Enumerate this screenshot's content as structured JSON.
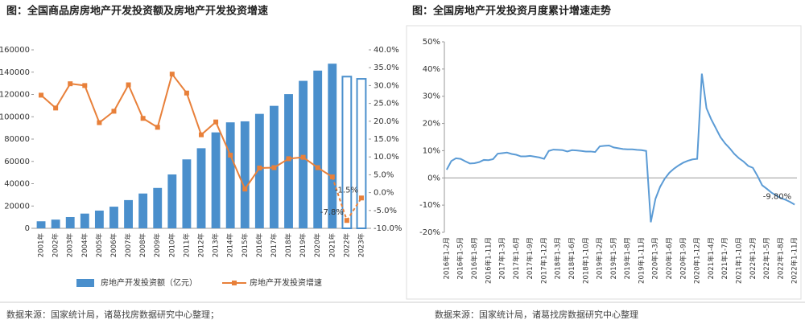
{
  "chart_data": [
    {
      "type": "combo",
      "title": "图：全国商品房房地产开发投资额及房地产开发投资增速",
      "source": "数据来源：国家统计局，诸葛找房数据研究中心整理；",
      "categories": [
        "2001年",
        "2002年",
        "2003年",
        "2004年",
        "2005年",
        "2006年",
        "2007年",
        "2008年",
        "2009年",
        "2010年",
        "2011年",
        "2012年",
        "2013年",
        "2014年",
        "2015年",
        "2016年",
        "2017年",
        "2018年",
        "2019年",
        "2020年",
        "2021年",
        "2022年",
        "2023年"
      ],
      "outline_only_categories": [
        "2022年",
        "2023年"
      ],
      "series": [
        {
          "name": "房地产开发投资额（亿元）",
          "color": "#4a8fcc",
          "kind": "bar",
          "values": [
            6300,
            7800,
            10100,
            13200,
            15900,
            19400,
            25300,
            31200,
            36200,
            48300,
            61800,
            71800,
            86000,
            95000,
            95900,
            102600,
            109800,
            120300,
            132200,
            141400,
            147600,
            136000,
            134000
          ]
        },
        {
          "name": "房地产开发投资增速",
          "color": "#e8803a",
          "kind": "line",
          "axis": "y2",
          "values": [
            27.3,
            23.7,
            30.5,
            30,
            19.6,
            22.8,
            30.2,
            20.8,
            18.3,
            33.2,
            27.9,
            16.2,
            19.8,
            10.5,
            1,
            6.9,
            7,
            9.5,
            9.9,
            7,
            4.4,
            -7.8,
            -1.5
          ],
          "value_labels": [
            null,
            null,
            null,
            null,
            null,
            null,
            null,
            null,
            null,
            null,
            null,
            null,
            null,
            null,
            null,
            null,
            null,
            null,
            null,
            null,
            null,
            "-7.8%",
            "-1.5%"
          ]
        }
      ],
      "ylim": [
        0,
        160000
      ],
      "yticks": [
        0,
        20000,
        40000,
        60000,
        80000,
        100000,
        120000,
        140000,
        160000
      ],
      "y2lim": [
        -10,
        40
      ],
      "y2ticks": [
        {
          "value": -10,
          "label": "-10.0%"
        },
        {
          "value": -5,
          "label": "-5.0%"
        },
        {
          "value": 0,
          "label": "0.0%"
        },
        {
          "value": 5,
          "label": "5.0%"
        },
        {
          "value": 10,
          "label": "10.0%"
        },
        {
          "value": 15,
          "label": "15.0%"
        },
        {
          "value": 20,
          "label": "20.0%"
        },
        {
          "value": 25,
          "label": "25.0%"
        },
        {
          "value": 30,
          "label": "30.0%"
        },
        {
          "value": 35,
          "label": "35.0%"
        },
        {
          "value": 40,
          "label": "40.0%"
        }
      ],
      "legend": "bottom"
    },
    {
      "type": "line",
      "title": "图：全国房地产开发投资月度累计增速走势",
      "source": "数据来源：国家统计局，诸葛找房数据研究中心整理",
      "categories": [
        "2016年1-2月",
        null,
        null,
        "2016年1-5月",
        null,
        null,
        "2016年1-8月",
        null,
        null,
        "2016年1-11月",
        null,
        null,
        "2017年1-3月",
        null,
        null,
        "2017年1-6月",
        null,
        null,
        "2017年1-9月",
        null,
        null,
        "2017年1-12月",
        null,
        null,
        "2018年1-3月",
        null,
        null,
        "2018年1-6月",
        null,
        null,
        "2018年1-10月",
        null,
        null,
        "2019年1-2月",
        null,
        null,
        "2019年1-5月",
        null,
        null,
        "2019年1-8月",
        null,
        null,
        "2019年1-11月",
        null,
        null,
        "2020年1-3月",
        null,
        null,
        "2020年1-6月",
        null,
        null,
        "2020年1-9月",
        null,
        null,
        "2020年1-12月",
        null,
        null,
        "2021年1-4月",
        null,
        null,
        "2021年1-7月",
        null,
        null,
        "2021年1-10月",
        null,
        null,
        "2022年1-2月",
        null,
        null,
        "2022年1-5月",
        null,
        null,
        "2022年1-8月",
        null,
        null,
        "2022年1-11月"
      ],
      "series": [
        {
          "color": "#5b9bd5",
          "values": [
            3.0,
            6.2,
            7.2,
            7.0,
            6.1,
            5.3,
            5.4,
            5.8,
            6.6,
            6.5,
            6.9,
            8.9,
            9.1,
            9.3,
            8.8,
            8.5,
            7.9,
            7.9,
            8.1,
            7.8,
            7.5,
            7.0,
            9.9,
            10.4,
            10.3,
            10.2,
            9.7,
            10.2,
            10.1,
            9.9,
            9.7,
            9.7,
            9.5,
            11.6,
            11.8,
            11.9,
            11.2,
            10.9,
            10.6,
            10.5,
            10.5,
            10.3,
            10.2,
            9.9,
            -16.3,
            -7.7,
            -3.3,
            -0.3,
            1.9,
            3.4,
            4.6,
            5.6,
            6.3,
            6.8,
            7.0,
            38.3,
            25.6,
            21.6,
            18.3,
            15.0,
            12.7,
            10.9,
            8.8,
            7.2,
            6.0,
            4.4,
            3.7,
            0.7,
            -2.7,
            -4.0,
            -5.4,
            -6.4,
            -7.4,
            -8.0,
            -8.8,
            -9.8
          ],
          "value_labels": [
            null,
            null,
            null,
            null,
            null,
            null,
            null,
            null,
            null,
            null,
            null,
            null,
            null,
            null,
            null,
            null,
            null,
            null,
            null,
            null,
            null,
            null,
            null,
            null,
            null,
            null,
            null,
            null,
            null,
            null,
            null,
            null,
            null,
            null,
            null,
            null,
            null,
            null,
            null,
            null,
            null,
            null,
            null,
            null,
            null,
            null,
            null,
            null,
            null,
            null,
            null,
            null,
            null,
            null,
            null,
            null,
            null,
            null,
            null,
            null,
            null,
            null,
            null,
            null,
            null,
            null,
            null,
            null,
            null,
            null,
            null,
            null,
            null,
            null,
            null,
            "-9.80%"
          ]
        }
      ],
      "ylim": [
        -20,
        50
      ],
      "yticks": [
        {
          "value": -20,
          "label": "-20%"
        },
        {
          "value": -10,
          "label": "-10%"
        },
        {
          "value": 0,
          "label": "0%"
        },
        {
          "value": 10,
          "label": "10%"
        },
        {
          "value": 20,
          "label": "20%"
        },
        {
          "value": 30,
          "label": "30%"
        },
        {
          "value": 40,
          "label": "40%"
        },
        {
          "value": 50,
          "label": "50%"
        }
      ]
    }
  ]
}
